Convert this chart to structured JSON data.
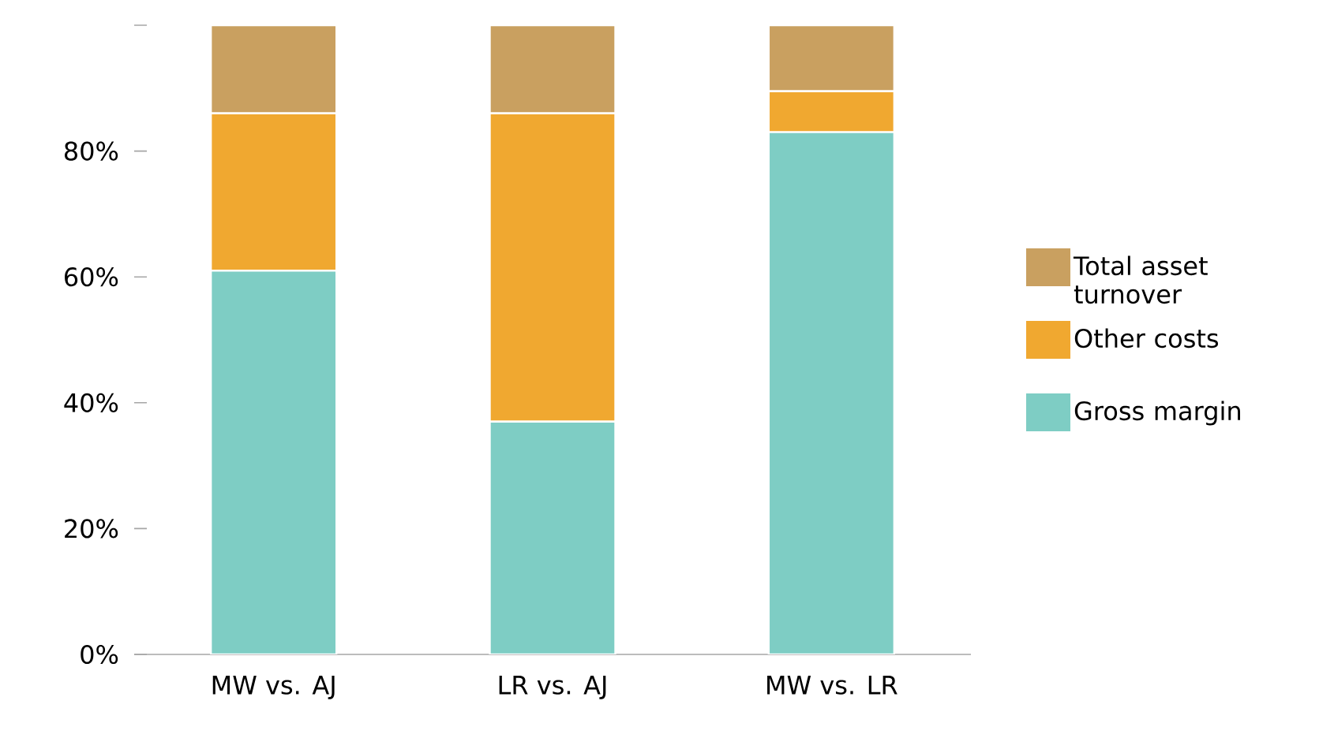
{
  "chart_data": {
    "type": "bar",
    "stacked": true,
    "categories": [
      "MW vs. AJ",
      "LR vs. AJ",
      "MW vs. LR"
    ],
    "series": [
      {
        "name": "Gross margin",
        "color": "#7ecdc4",
        "values": [
          61,
          37,
          83
        ]
      },
      {
        "name": "Other costs",
        "color": "#f0a830",
        "values": [
          25,
          49,
          6.5
        ]
      },
      {
        "name": "Total asset turnover",
        "color": "#c9a060",
        "values": [
          14,
          14,
          10.5
        ]
      }
    ],
    "ylim": [
      0,
      100
    ],
    "yticks": [
      {
        "value": 0,
        "label": "0%"
      },
      {
        "value": 20,
        "label": "20%"
      },
      {
        "value": 40,
        "label": "40%"
      },
      {
        "value": 60,
        "label": "60%"
      },
      {
        "value": 80,
        "label": "80%"
      },
      {
        "value": 100,
        "label": null
      }
    ],
    "grid": false,
    "legend": "right"
  }
}
